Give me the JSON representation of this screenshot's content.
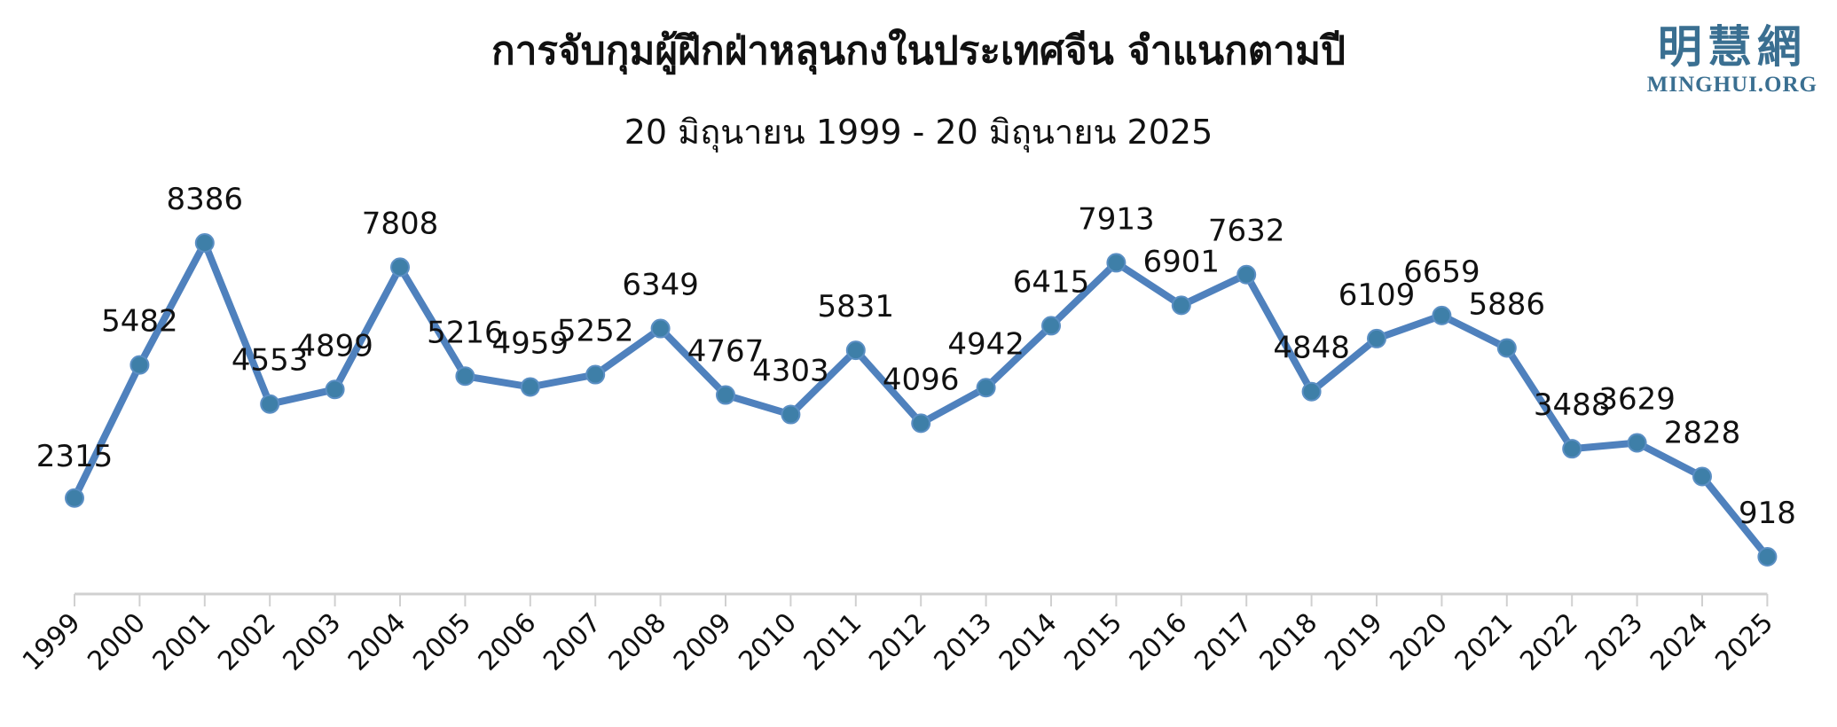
{
  "header": {
    "title": "การจับกุมผู้ฝึกฝ่าหลุนกงในประเทศจีน จำแนกตามปี",
    "subtitle": "20 มิถุนายน 1999 - 20 มิถุนายน 2025"
  },
  "logo": {
    "cjk": "明慧網",
    "latin": "MINGHUI.ORG"
  },
  "colors": {
    "line": "#4f81bd",
    "marker": "#3e7fa8",
    "axis": "#d0d0d0",
    "text": "#111111"
  },
  "chart_data": {
    "type": "line",
    "title": "การจับกุมผู้ฝึกฝ่าหลุนกงในประเทศจีน จำแนกตามปี",
    "subtitle": "20 มิถุนายน 1999 - 20 มิถุนายน 2025",
    "xlabel": "",
    "ylabel": "",
    "categories": [
      "1999",
      "2000",
      "2001",
      "2002",
      "2003",
      "2004",
      "2005",
      "2006",
      "2007",
      "2008",
      "2009",
      "2010",
      "2011",
      "2012",
      "2013",
      "2014",
      "2015",
      "2016",
      "2017",
      "2018",
      "2019",
      "2020",
      "2021",
      "2022",
      "2023",
      "2024",
      "2025"
    ],
    "values": [
      2315,
      5482,
      8386,
      4553,
      4899,
      7808,
      5216,
      4959,
      5252,
      6349,
      4767,
      4303,
      5831,
      4096,
      4942,
      6415,
      7913,
      6901,
      7632,
      4848,
      6109,
      6659,
      5886,
      3488,
      3629,
      2828,
      918
    ],
    "ylim": [
      0,
      9000
    ],
    "grid": false,
    "legend": "none",
    "data_labels": true
  }
}
